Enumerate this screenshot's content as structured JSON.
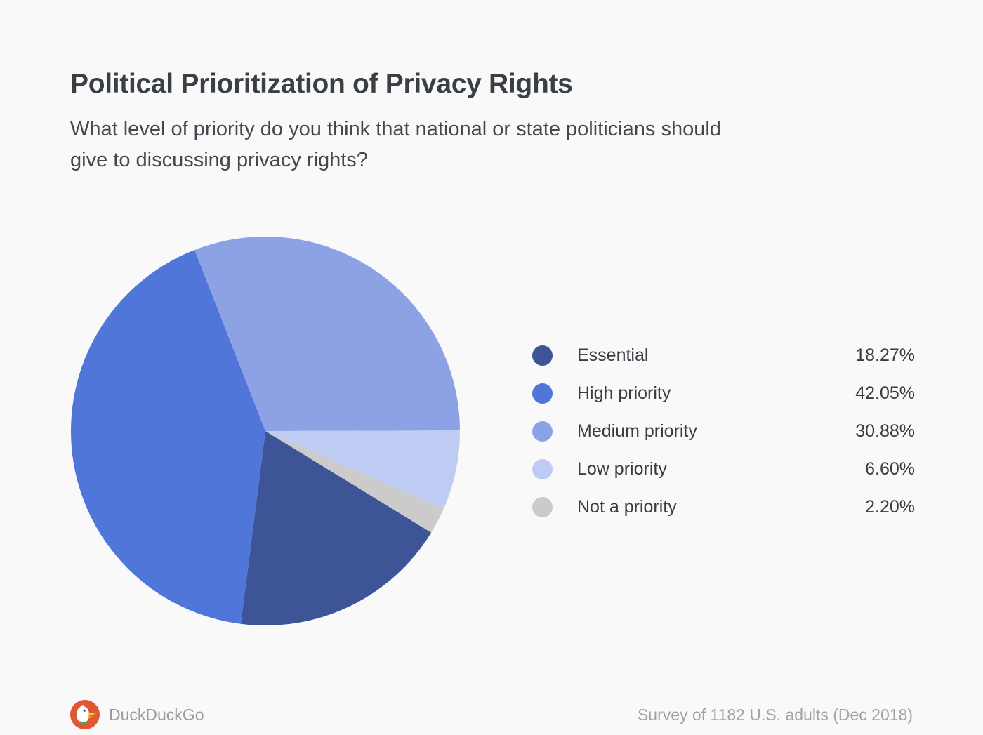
{
  "header": {
    "title": "Political Prioritization of Privacy Rights",
    "subtitle_line1": "What level of priority do you think that national or state politicians should",
    "subtitle_line2": "give to discussing privacy rights?"
  },
  "chart_data": {
    "type": "pie",
    "title": "Political Prioritization of Privacy Rights",
    "legend_position": "right",
    "start_angle_deg_clockwise_from_top": 121.5,
    "direction": "clockwise",
    "slices": [
      {
        "label": "Essential",
        "value": 18.27,
        "display": "18.27%",
        "color": "#3d5496"
      },
      {
        "label": "High priority",
        "value": 42.05,
        "display": "42.05%",
        "color": "#5076da"
      },
      {
        "label": "Medium priority",
        "value": 30.88,
        "display": "30.88%",
        "color": "#8ca2e4"
      },
      {
        "label": "Low priority",
        "value": 6.6,
        "display": "6.60%",
        "color": "#becbf2"
      },
      {
        "label": "Not a priority",
        "value": 2.2,
        "display": "2.20%",
        "color": "#cbcbcc"
      }
    ]
  },
  "footer": {
    "brand": "DuckDuckGo",
    "note": "Survey of 1182 U.S. adults (Dec 2018)"
  },
  "colors": {
    "background": "#f9f9f9",
    "title_text": "#3a3f45",
    "body_text": "#43484e",
    "legend_text": "#383d43",
    "footer_text": "#9b9b9b",
    "divider": "#e7e7e7",
    "logo_orange": "#de5833"
  }
}
